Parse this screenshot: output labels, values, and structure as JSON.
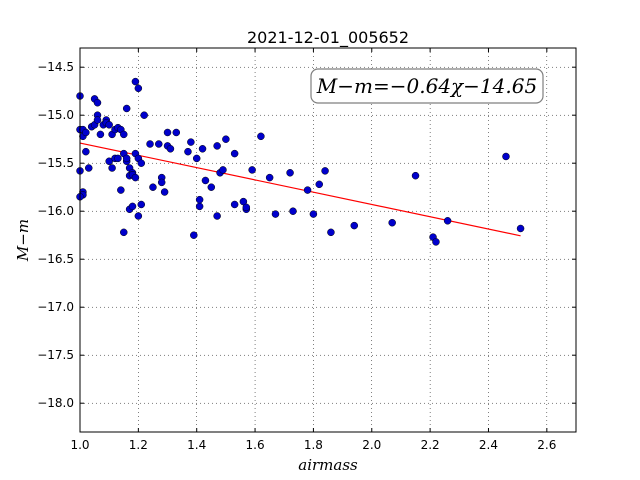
{
  "chart_data": {
    "type": "scatter",
    "title": "2021-12-01_005652",
    "xlabel": "airmass",
    "ylabel": "M−m",
    "xlim": [
      1.0,
      2.7
    ],
    "ylim": [
      -18.3,
      -14.3
    ],
    "y_inverted": true,
    "x_ticks": [
      "1.0",
      "1.2",
      "1.4",
      "1.6",
      "1.8",
      "2.0",
      "2.2",
      "2.4",
      "2.6"
    ],
    "y_ticks": [
      "−14.5",
      "−15.0",
      "−15.5",
      "−16.0",
      "−16.5",
      "−17.0",
      "−17.5",
      "−18.0"
    ],
    "grid": true,
    "annotation": "M−m=−0.64χ−14.65",
    "fit": {
      "slope": -0.64,
      "intercept": -14.65,
      "x_range": [
        1.0,
        2.51
      ],
      "color": "#ff0000"
    },
    "marker_color": "#0000cc",
    "points": [
      [
        1.0,
        -14.8
      ],
      [
        1.0,
        -15.15
      ],
      [
        1.0,
        -15.58
      ],
      [
        1.01,
        -15.8
      ],
      [
        1.01,
        -15.83
      ],
      [
        1.0,
        -15.85
      ],
      [
        1.01,
        -15.15
      ],
      [
        1.01,
        -15.22
      ],
      [
        1.02,
        -15.18
      ],
      [
        1.02,
        -15.38
      ],
      [
        1.03,
        -15.55
      ],
      [
        1.04,
        -15.12
      ],
      [
        1.05,
        -14.83
      ],
      [
        1.05,
        -15.1
      ],
      [
        1.06,
        -14.87
      ],
      [
        1.06,
        -15.0
      ],
      [
        1.06,
        -15.05
      ],
      [
        1.07,
        -15.2
      ],
      [
        1.08,
        -15.1
      ],
      [
        1.09,
        -15.05
      ],
      [
        1.09,
        -15.08
      ],
      [
        1.1,
        -15.1
      ],
      [
        1.1,
        -15.48
      ],
      [
        1.11,
        -15.55
      ],
      [
        1.11,
        -15.2
      ],
      [
        1.12,
        -15.45
      ],
      [
        1.12,
        -15.15
      ],
      [
        1.13,
        -15.13
      ],
      [
        1.13,
        -15.45
      ],
      [
        1.14,
        -15.15
      ],
      [
        1.15,
        -15.2
      ],
      [
        1.15,
        -15.4
      ],
      [
        1.14,
        -15.78
      ],
      [
        1.15,
        -16.22
      ],
      [
        1.16,
        -15.48
      ],
      [
        1.16,
        -15.45
      ],
      [
        1.16,
        -14.93
      ],
      [
        1.17,
        -15.55
      ],
      [
        1.17,
        -15.98
      ],
      [
        1.17,
        -15.63
      ],
      [
        1.18,
        -15.6
      ],
      [
        1.18,
        -15.62
      ],
      [
        1.18,
        -15.95
      ],
      [
        1.19,
        -15.65
      ],
      [
        1.19,
        -15.4
      ],
      [
        1.19,
        -14.65
      ],
      [
        1.2,
        -14.72
      ],
      [
        1.2,
        -15.45
      ],
      [
        1.21,
        -15.5
      ],
      [
        1.21,
        -15.93
      ],
      [
        1.2,
        -16.05
      ],
      [
        1.22,
        -15.0
      ],
      [
        1.24,
        -15.3
      ],
      [
        1.25,
        -15.75
      ],
      [
        1.27,
        -15.3
      ],
      [
        1.28,
        -15.65
      ],
      [
        1.28,
        -15.7
      ],
      [
        1.29,
        -15.8
      ],
      [
        1.3,
        -15.18
      ],
      [
        1.3,
        -15.32
      ],
      [
        1.31,
        -15.35
      ],
      [
        1.33,
        -15.18
      ],
      [
        1.37,
        -15.38
      ],
      [
        1.38,
        -15.28
      ],
      [
        1.39,
        -16.25
      ],
      [
        1.4,
        -15.45
      ],
      [
        1.41,
        -15.95
      ],
      [
        1.41,
        -15.88
      ],
      [
        1.42,
        -15.35
      ],
      [
        1.43,
        -15.68
      ],
      [
        1.45,
        -15.75
      ],
      [
        1.47,
        -15.32
      ],
      [
        1.47,
        -16.05
      ],
      [
        1.48,
        -15.6
      ],
      [
        1.49,
        -15.57
      ],
      [
        1.5,
        -15.25
      ],
      [
        1.53,
        -15.4
      ],
      [
        1.53,
        -15.93
      ],
      [
        1.56,
        -15.9
      ],
      [
        1.57,
        -15.98
      ],
      [
        1.57,
        -15.96
      ],
      [
        1.59,
        -15.57
      ],
      [
        1.62,
        -15.22
      ],
      [
        1.65,
        -15.65
      ],
      [
        1.67,
        -16.03
      ],
      [
        1.72,
        -15.6
      ],
      [
        1.73,
        -16.0
      ],
      [
        1.78,
        -15.78
      ],
      [
        1.8,
        -16.03
      ],
      [
        1.82,
        -15.72
      ],
      [
        1.84,
        -15.58
      ],
      [
        1.86,
        -16.22
      ],
      [
        1.94,
        -16.15
      ],
      [
        2.07,
        -16.12
      ],
      [
        2.15,
        -15.63
      ],
      [
        2.21,
        -16.27
      ],
      [
        2.22,
        -16.32
      ],
      [
        2.26,
        -16.1
      ],
      [
        2.46,
        -15.43
      ],
      [
        2.51,
        -16.18
      ]
    ]
  }
}
